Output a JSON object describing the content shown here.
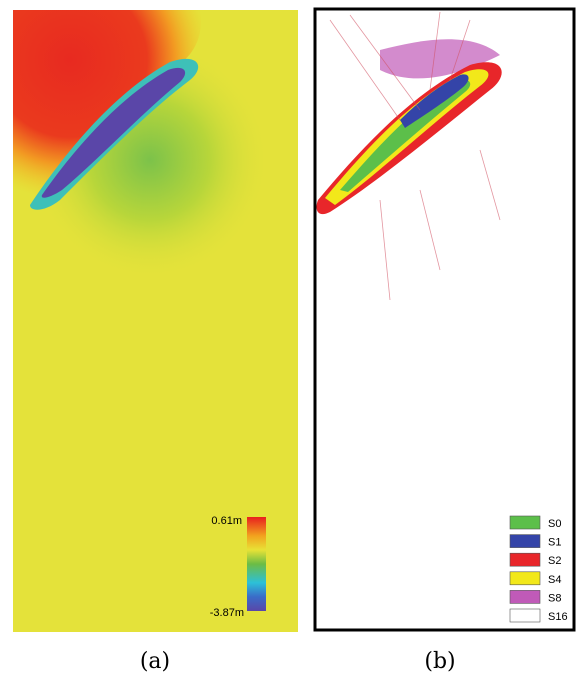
{
  "panels": [
    {
      "caption": "(a)",
      "colorbar": {
        "max_label": "0.61m",
        "min_label": "-3.87m"
      }
    },
    {
      "caption": "(b)",
      "legend": [
        {
          "label": "S0",
          "color": "#5cbf4a"
        },
        {
          "label": "S1",
          "color": "#3444a8"
        },
        {
          "label": "S2",
          "color": "#e8262a"
        },
        {
          "label": "S4",
          "color": "#f2e81a"
        },
        {
          "label": "S8",
          "color": "#c05ab8"
        },
        {
          "label": "S16",
          "color": "#ffffff"
        }
      ]
    }
  ]
}
